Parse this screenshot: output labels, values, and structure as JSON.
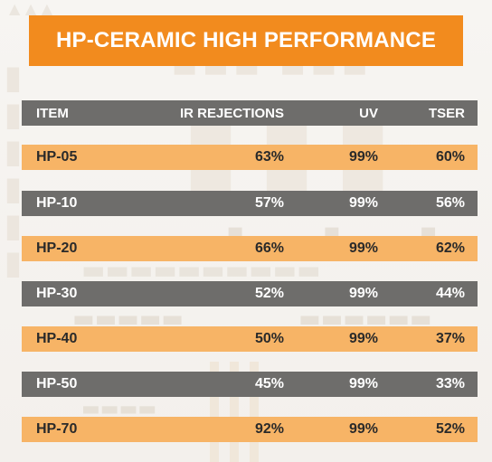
{
  "title": "HP-CERAMIC HIGH PERFORMANCE",
  "colors": {
    "title_bg": "#f28b1e",
    "grey_row": "#6e6d6b",
    "orange_row": "#f7b466"
  },
  "table": {
    "headers": {
      "item": "ITEM",
      "ir": "IR REJECTIONS",
      "uv": "UV",
      "tser": "TSER"
    },
    "rows": [
      {
        "item": "HP-05",
        "ir": "63%",
        "uv": "99%",
        "tser": "60%"
      },
      {
        "item": "HP-10",
        "ir": "57%",
        "uv": "99%",
        "tser": "56%"
      },
      {
        "item": "HP-20",
        "ir": "66%",
        "uv": "99%",
        "tser": "62%"
      },
      {
        "item": "HP-30",
        "ir": "52%",
        "uv": "99%",
        "tser": "44%"
      },
      {
        "item": "HP-40",
        "ir": "50%",
        "uv": "99%",
        "tser": "37%"
      },
      {
        "item": "HP-50",
        "ir": "45%",
        "uv": "99%",
        "tser": "33%"
      },
      {
        "item": "HP-70",
        "ir": "92%",
        "uv": "99%",
        "tser": "52%"
      }
    ]
  }
}
